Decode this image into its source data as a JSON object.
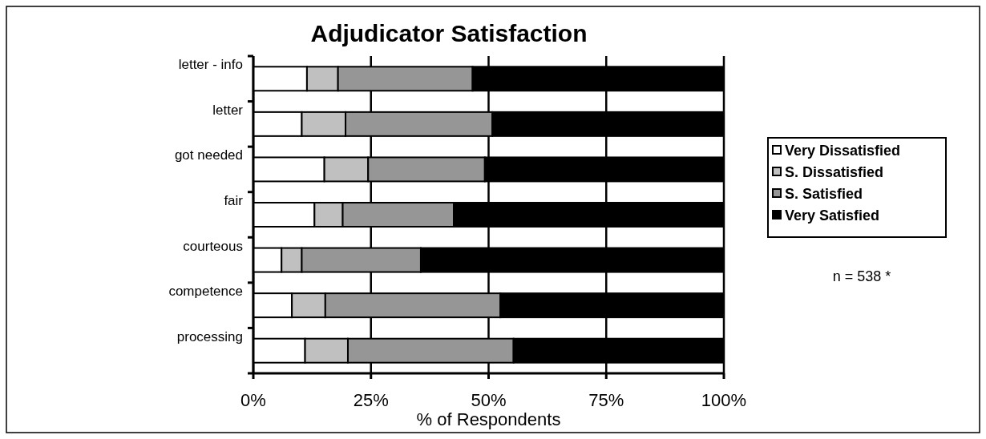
{
  "chart_data": {
    "type": "bar",
    "orientation": "horizontal",
    "stacked": true,
    "title": "Adjudicator Satisfaction",
    "xlabel": "% of Respondents",
    "categories": [
      "letter - info",
      "letter",
      "got needed",
      "fair",
      "courteous",
      "competence",
      "processing"
    ],
    "series": [
      {
        "name": "Very Dissatisfied",
        "color": "#ffffff",
        "values": [
          11.4,
          10.3,
          15.1,
          13.0,
          6.0,
          8.2,
          11.0
        ]
      },
      {
        "name": "S. Dissatisfied",
        "color": "#c0c0c0",
        "values": [
          6.6,
          9.3,
          9.3,
          6.0,
          4.3,
          7.1,
          9.1
        ]
      },
      {
        "name": "S. Satisfied",
        "color": "#969696",
        "values": [
          28.6,
          31.2,
          24.8,
          23.6,
          25.3,
          37.2,
          35.2
        ]
      },
      {
        "name": "Very Satisfied",
        "color": "#000000",
        "values": [
          53.4,
          49.2,
          50.8,
          57.4,
          64.4,
          47.5,
          44.7
        ]
      }
    ],
    "xlim": [
      0,
      100
    ],
    "xticks": [
      {
        "value": 0,
        "label": "0%"
      },
      {
        "value": 25,
        "label": "25%"
      },
      {
        "value": 50,
        "label": "50%"
      },
      {
        "value": 75,
        "label": "75%"
      },
      {
        "value": 100,
        "label": "100%"
      }
    ],
    "grid": "x",
    "legend": "right",
    "annotations": [
      "n = 538 *"
    ]
  }
}
